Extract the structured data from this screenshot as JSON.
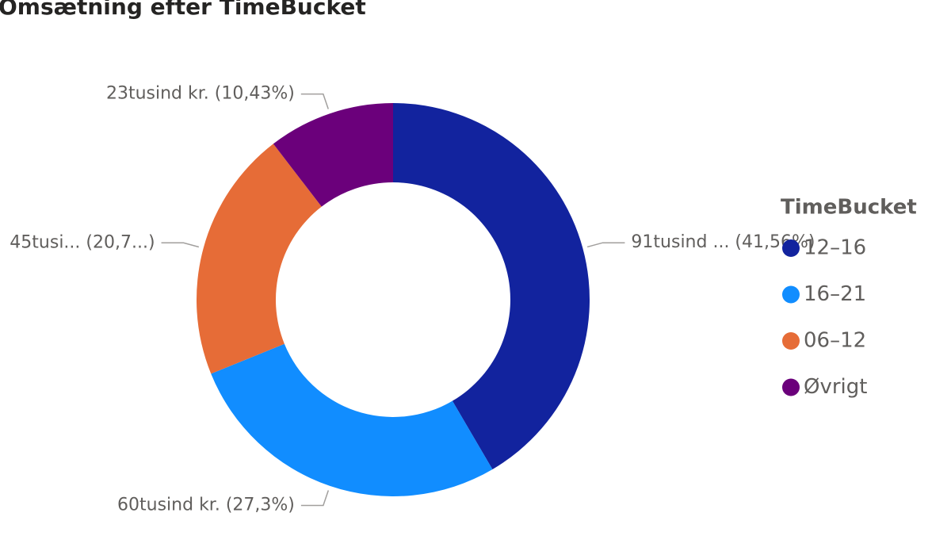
{
  "chart_data": {
    "type": "donut",
    "title": "Omsætning efter TimeBucket",
    "legend_title": "TimeBucket",
    "legend": "right",
    "categories": [
      "12–16",
      "16–21",
      "06–12",
      "Øvrigt"
    ],
    "values": [
      41.56,
      27.3,
      20.71,
      10.43
    ],
    "value_labels": [
      "91tusind ... (41,56%)",
      "60tusind kr. (27,3%)",
      "45tusi... (20,7...)",
      "23tusind kr. (10,43%)"
    ],
    "colors": [
      "#12239E",
      "#118DFF",
      "#E66C37",
      "#6B007B"
    ]
  }
}
